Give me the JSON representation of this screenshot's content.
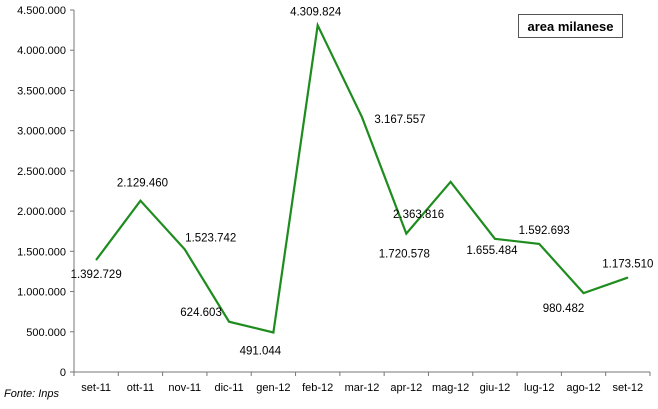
{
  "chart_data": {
    "type": "line",
    "title": "area milanese",
    "categories": [
      "set-11",
      "ott-11",
      "nov-11",
      "dic-11",
      "gen-12",
      "feb-12",
      "mar-12",
      "apr-12",
      "mag-12",
      "giu-12",
      "lug-12",
      "ago-12",
      "set-12"
    ],
    "series": [
      {
        "values": [
          1392729,
          2129460,
          1523742,
          624603,
          491044,
          4309824,
          3167557,
          1720578,
          2363816,
          1655484,
          1592693,
          980482,
          1173510
        ],
        "value_labels": [
          "1.392.729",
          "2.129.460",
          "1.523.742",
          "624.603",
          "491.044",
          "4.309.824",
          "3.167.557",
          "1.720.578",
          "2.363.816",
          "1.655.484",
          "1.592.693",
          "980.482",
          "1.173.510"
        ],
        "color": "#1e8c1e"
      }
    ],
    "ylim": [
      0,
      4500000
    ],
    "yticks": [
      0,
      500000,
      1000000,
      1500000,
      2000000,
      2500000,
      3000000,
      3500000,
      4000000,
      4500000
    ],
    "ytick_labels": [
      "0",
      "500.000",
      "1.000.000",
      "1.500.000",
      "2.000.000",
      "2.500.000",
      "3.000.000",
      "3.500.000",
      "4.000.000",
      "4.500.000"
    ],
    "grid": false,
    "legend": "top-right",
    "xlabel": "",
    "ylabel": ""
  },
  "source_note": "Fonte: Inps"
}
